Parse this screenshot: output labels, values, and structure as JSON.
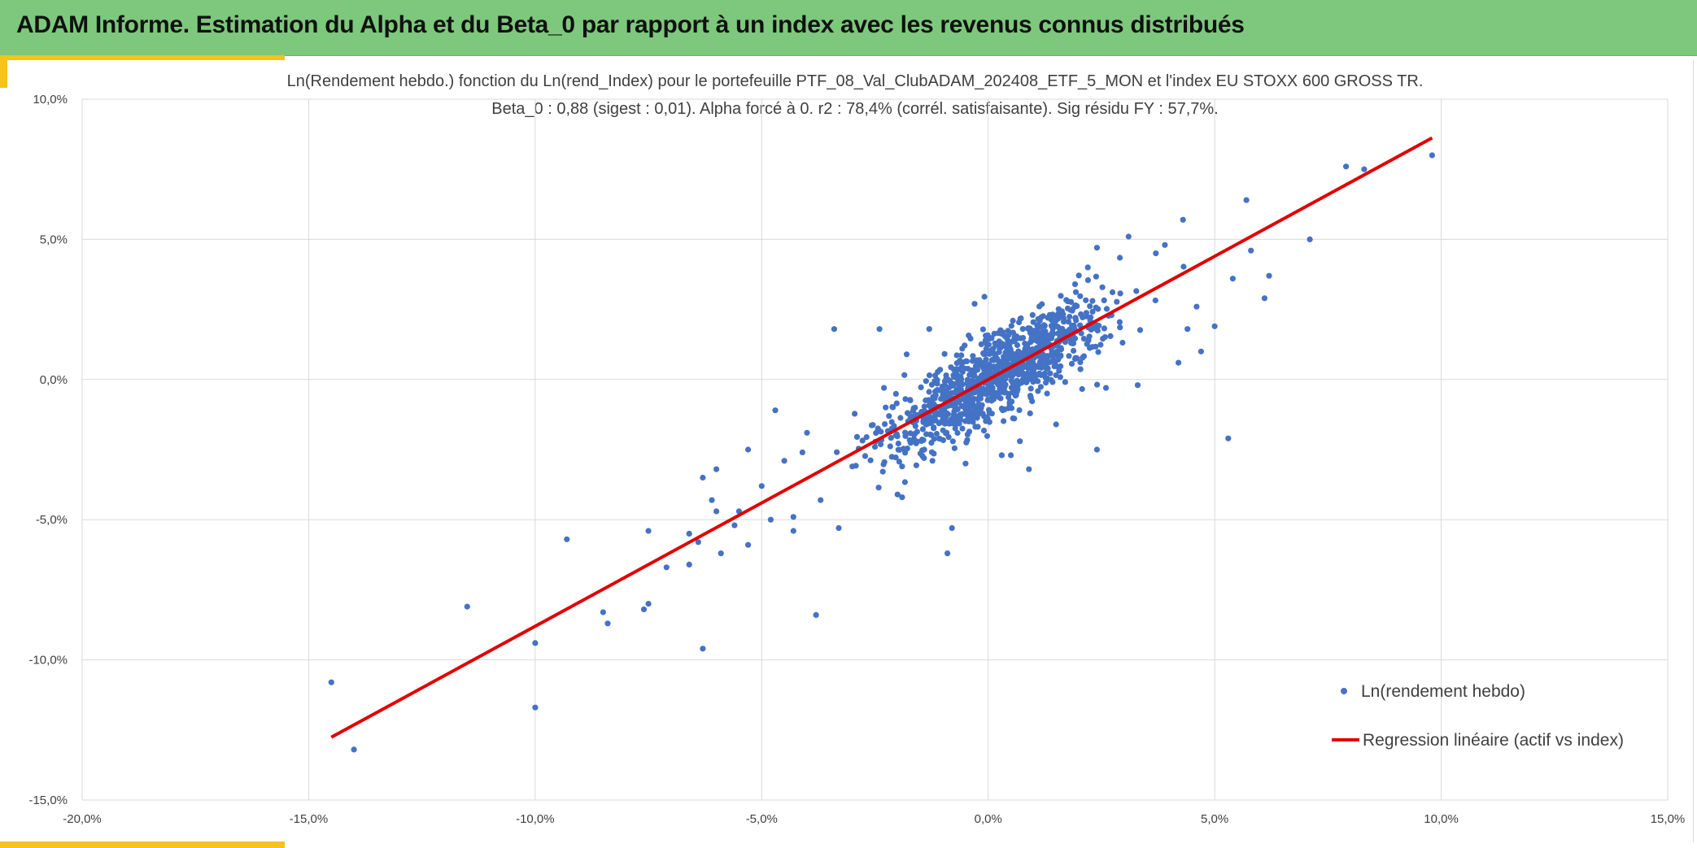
{
  "header": {
    "title": "ADAM Informe. Estimation du Alpha et du Beta_0 par rapport à un index avec les revenus connus distribués"
  },
  "colors": {
    "banner": "#7dc87d",
    "accent": "#f6c21b",
    "points": "#4472c4",
    "regression": "#e00000",
    "grid": "#d9d9d9"
  },
  "chart_data": {
    "type": "scatter",
    "title_line1": "Ln(Rendement hebdo.) fonction du Ln(rend_Index) pour le portefeuille PTF_08_Val_ClubADAM_202408_ETF_5_MON et l'index EU STOXX 600 GROSS TR.",
    "title_line2": "Beta_0 : 0,88 (sigest : 0,01). Alpha forcé à 0. r2 : 78,4% (corrél. satisfaisante). Sig résidu FY : 57,7%.",
    "xlim": [
      -20,
      15
    ],
    "ylim": [
      -15,
      10
    ],
    "x_ticks": [
      -20,
      -15,
      -10,
      -5,
      0,
      5,
      10,
      15
    ],
    "y_ticks": [
      -15,
      -10,
      -5,
      0,
      5,
      10
    ],
    "x_tick_labels": [
      "-20,0%",
      "-15,0%",
      "-10,0%",
      "-5,0%",
      "0,0%",
      "5,0%",
      "10,0%",
      "15,0%"
    ],
    "y_tick_labels": [
      "-15,0%",
      "-10,0%",
      "-5,0%",
      "0,0%",
      "5,0%",
      "10,0%"
    ],
    "grid": true,
    "legend_position": "bottom-right",
    "series": [
      {
        "name": "Ln(rendement hebdo)",
        "kind": "scatter",
        "color": "#4472c4",
        "cluster": {
          "count": 1100,
          "x_mean": 0.2,
          "x_sd": 1.15,
          "slope": 0.88,
          "residual_sd": 0.75,
          "seed": 20240814
        },
        "points": [
          [
            -14.5,
            -10.8
          ],
          [
            -14.0,
            -13.2
          ],
          [
            -11.5,
            -8.1
          ],
          [
            -10.0,
            -9.4
          ],
          [
            -10.0,
            -11.7
          ],
          [
            -9.3,
            -5.7
          ],
          [
            -8.5,
            -8.3
          ],
          [
            -8.4,
            -8.7
          ],
          [
            -7.6,
            -8.2
          ],
          [
            -7.5,
            -8.0
          ],
          [
            -7.5,
            -5.4
          ],
          [
            -7.1,
            -6.7
          ],
          [
            -6.6,
            -5.5
          ],
          [
            -6.6,
            -6.6
          ],
          [
            -6.4,
            -5.8
          ],
          [
            -6.3,
            -9.6
          ],
          [
            -6.3,
            -3.5
          ],
          [
            -6.1,
            -4.3
          ],
          [
            -6.0,
            -4.7
          ],
          [
            -6.0,
            -3.2
          ],
          [
            -5.9,
            -6.2
          ],
          [
            -5.6,
            -5.2
          ],
          [
            -5.5,
            -4.7
          ],
          [
            -5.3,
            -5.9
          ],
          [
            -5.3,
            -2.5
          ],
          [
            -5.0,
            -3.8
          ],
          [
            -4.8,
            -5.0
          ],
          [
            -4.7,
            -1.1
          ],
          [
            -4.5,
            -2.9
          ],
          [
            -4.3,
            -4.9
          ],
          [
            -4.3,
            -5.4
          ],
          [
            -4.1,
            -2.6
          ],
          [
            -4.0,
            -1.9
          ],
          [
            -3.8,
            -8.4
          ],
          [
            -3.7,
            -4.3
          ],
          [
            -3.4,
            1.8
          ],
          [
            -3.3,
            -5.3
          ],
          [
            -3.0,
            -3.1
          ],
          [
            -2.5,
            -2.4
          ],
          [
            -2.4,
            1.8
          ],
          [
            -2.3,
            -0.3
          ],
          [
            -2.0,
            -4.1
          ],
          [
            -1.9,
            -4.2
          ],
          [
            -1.9,
            -3.1
          ],
          [
            -1.8,
            0.9
          ],
          [
            -1.3,
            1.8
          ],
          [
            -0.9,
            -6.2
          ],
          [
            -0.8,
            -5.3
          ],
          [
            -0.5,
            -3.0
          ],
          [
            -0.3,
            2.7
          ],
          [
            0.3,
            -2.7
          ],
          [
            0.5,
            -2.7
          ],
          [
            0.7,
            -2.2
          ],
          [
            0.9,
            -3.2
          ],
          [
            1.3,
            -0.5
          ],
          [
            1.5,
            -1.6
          ],
          [
            2.2,
            4.0
          ],
          [
            2.4,
            4.7
          ],
          [
            2.4,
            -2.5
          ],
          [
            2.6,
            -0.3
          ],
          [
            3.1,
            5.1
          ],
          [
            3.3,
            -0.2
          ],
          [
            3.7,
            4.5
          ],
          [
            3.9,
            4.8
          ],
          [
            4.2,
            0.6
          ],
          [
            4.3,
            5.7
          ],
          [
            4.4,
            1.8
          ],
          [
            4.6,
            2.6
          ],
          [
            4.7,
            1.0
          ],
          [
            5.0,
            1.9
          ],
          [
            5.3,
            -2.1
          ],
          [
            5.4,
            3.6
          ],
          [
            5.7,
            6.4
          ],
          [
            5.8,
            4.6
          ],
          [
            6.1,
            2.9
          ],
          [
            6.2,
            3.7
          ],
          [
            7.1,
            5.0
          ],
          [
            7.9,
            7.6
          ],
          [
            8.3,
            7.5
          ],
          [
            9.8,
            8.0
          ]
        ]
      },
      {
        "name": "Regression linéaire (actif vs index)",
        "kind": "line",
        "color": "#e00000",
        "x": [
          -14.5,
          9.8
        ],
        "y": [
          -12.76,
          8.62
        ]
      }
    ]
  }
}
